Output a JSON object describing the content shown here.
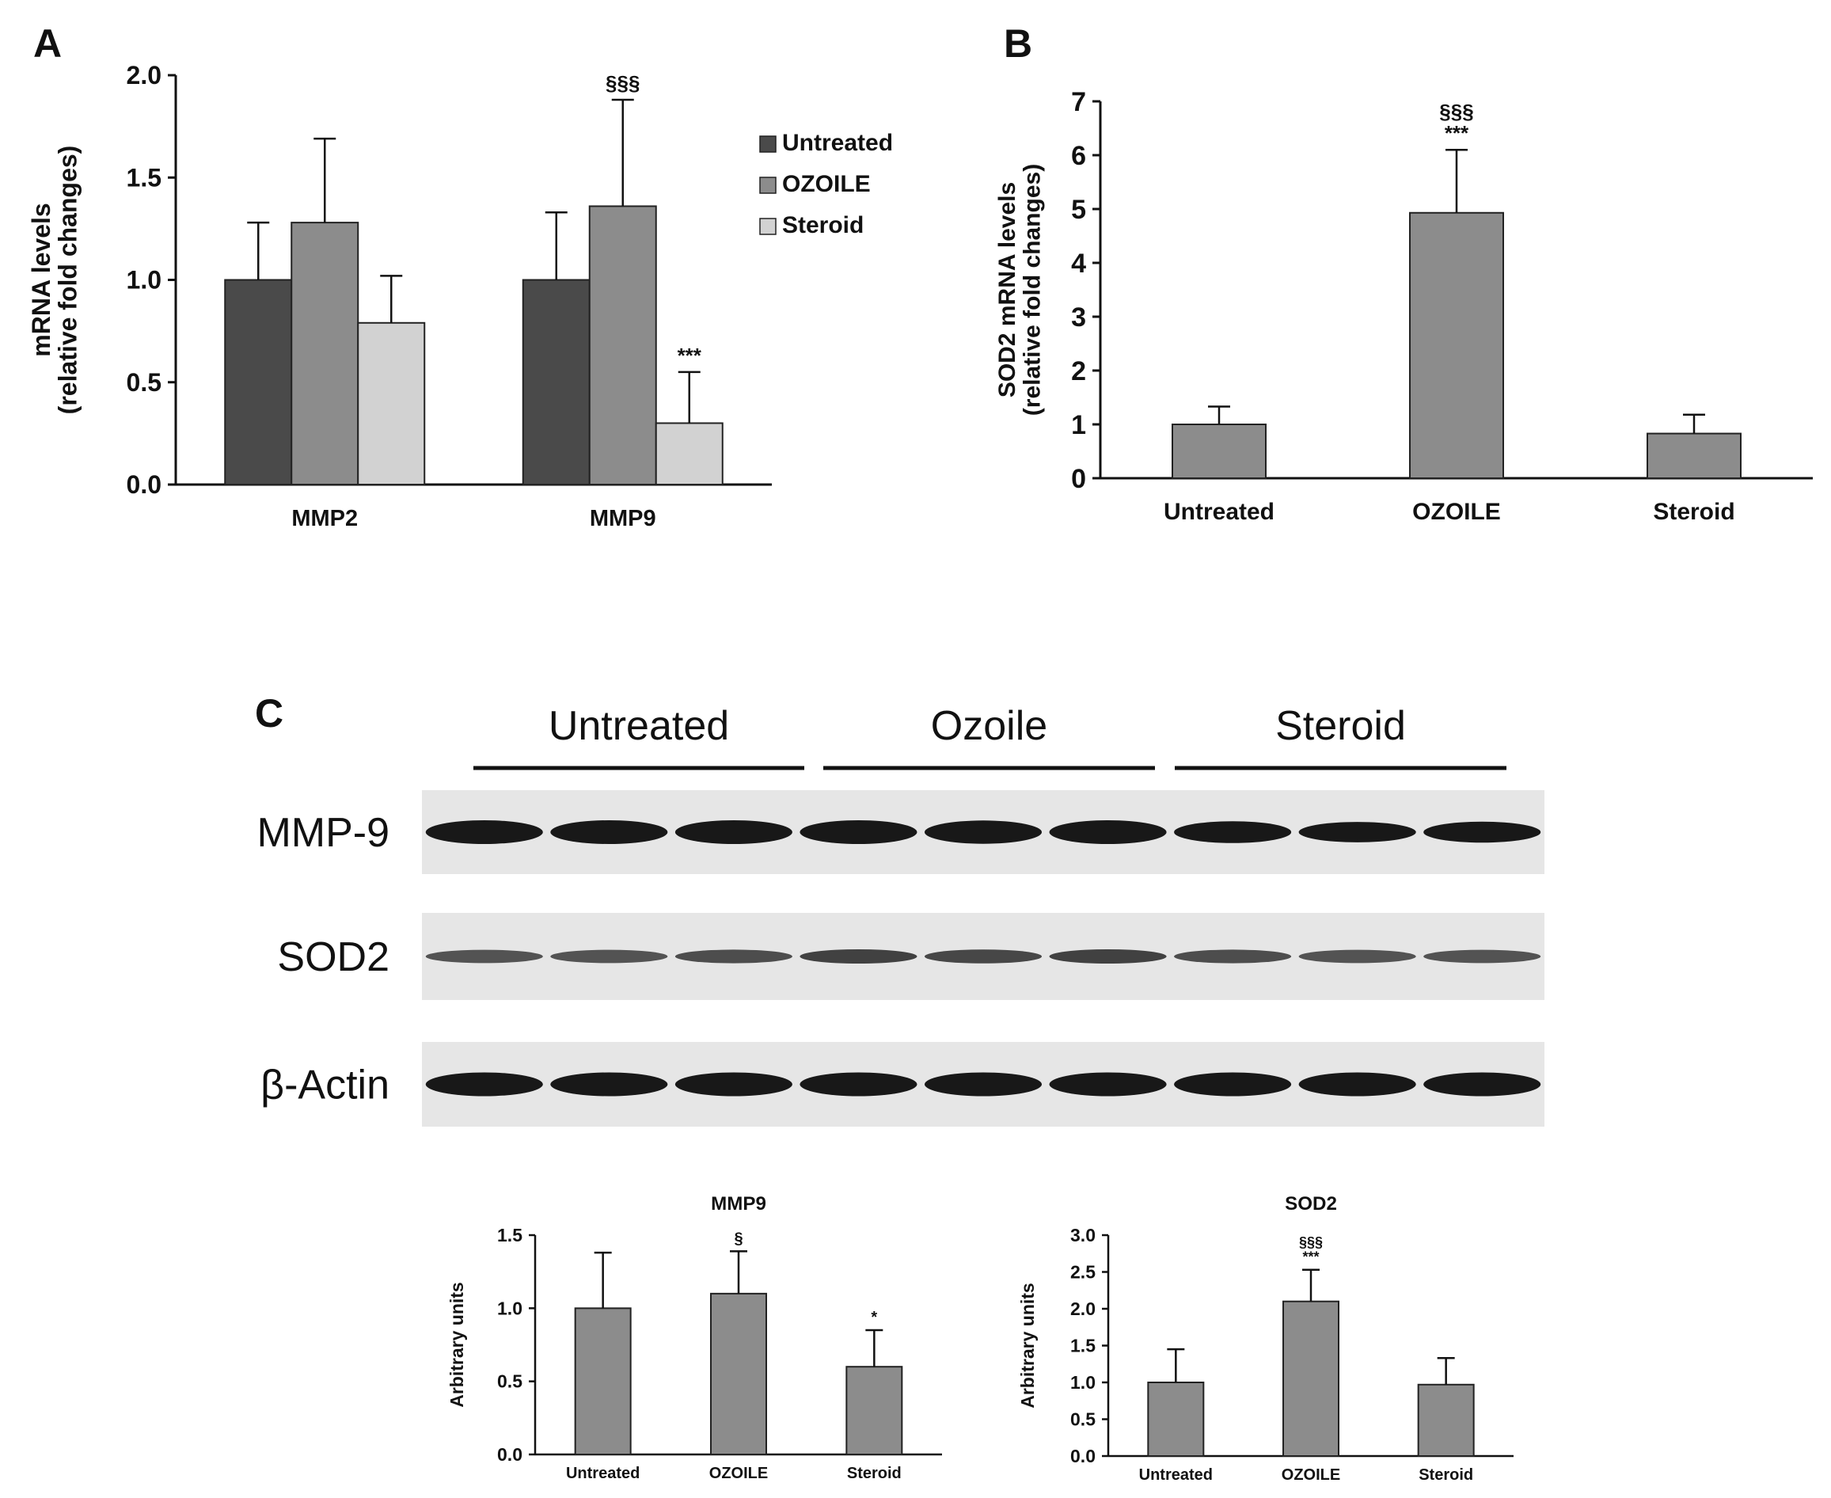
{
  "panel_labels": {
    "a": "A",
    "b": "B",
    "c": "C"
  },
  "colors": {
    "untreated": "#4a4a4a",
    "ozoile": "#8c8c8c",
    "steroid": "#d2d2d2",
    "bar_single": "#8c8c8c",
    "axis": "#111111",
    "blot_bg": "#e6e6e6",
    "band": "#0d0d0d"
  },
  "chart_data": [
    {
      "id": "A",
      "type": "bar",
      "categories": [
        "MMP2",
        "MMP9"
      ],
      "series": [
        {
          "name": "Untreated",
          "values": [
            1.0,
            1.0
          ],
          "errors": [
            0.28,
            0.33
          ]
        },
        {
          "name": "OZOILE",
          "values": [
            1.28,
            1.36
          ],
          "errors": [
            0.41,
            0.52
          ]
        },
        {
          "name": "Steroid",
          "values": [
            0.79,
            0.3
          ],
          "errors": [
            0.23,
            0.25
          ]
        }
      ],
      "annotations": [
        {
          "category": "MMP9",
          "series": "OZOILE",
          "text": "§§§"
        },
        {
          "category": "MMP9",
          "series": "Steroid",
          "text": "***"
        }
      ],
      "ylabel_line1": "mRNA levels",
      "ylabel_line2": "(relative fold changes)",
      "ylim": [
        0,
        2.0
      ],
      "yticks": [
        "0.0",
        "0.5",
        "1.0",
        "1.5",
        "2.0"
      ],
      "legend_position": "right"
    },
    {
      "id": "B",
      "type": "bar",
      "categories": [
        "Untreated",
        "OZOILE",
        "Steroid"
      ],
      "values": [
        1.0,
        4.93,
        0.83
      ],
      "errors": [
        0.33,
        1.17,
        0.35
      ],
      "annotations": [
        {
          "category": "OZOILE",
          "lines": [
            "§§§",
            "***"
          ]
        }
      ],
      "ylabel_line1": "SOD2 mRNA levels",
      "ylabel_line2": "(relative fold changes)",
      "ylim": [
        0,
        7
      ],
      "yticks": [
        "0",
        "1",
        "2",
        "3",
        "4",
        "5",
        "6",
        "7"
      ]
    },
    {
      "id": "C-MMP9",
      "type": "bar",
      "title": "MMP9",
      "categories": [
        "Untreated",
        "OZOILE",
        "Steroid"
      ],
      "values": [
        1.0,
        1.1,
        0.6
      ],
      "errors": [
        0.38,
        0.29,
        0.25
      ],
      "annotations": [
        {
          "category": "OZOILE",
          "lines": [
            "§"
          ]
        },
        {
          "category": "Steroid",
          "lines": [
            "*"
          ]
        }
      ],
      "ylabel_line1": "Arbitrary units",
      "ylim": [
        0,
        1.5
      ],
      "yticks": [
        "0.0",
        "0.5",
        "1.0",
        "1.5"
      ]
    },
    {
      "id": "C-SOD2",
      "type": "bar",
      "title": "SOD2",
      "categories": [
        "Untreated",
        "OZOILE",
        "Steroid"
      ],
      "values": [
        1.0,
        2.1,
        0.97
      ],
      "errors": [
        0.45,
        0.43,
        0.36
      ],
      "annotations": [
        {
          "category": "OZOILE",
          "lines": [
            "§§§",
            "***"
          ]
        }
      ],
      "ylabel_line1": "Arbitrary units",
      "ylim": [
        0,
        3.0
      ],
      "yticks": [
        "0.0",
        "0.5",
        "1.0",
        "1.5",
        "2.0",
        "2.5",
        "3.0"
      ]
    }
  ],
  "blot": {
    "groups": [
      "Untreated",
      "Ozoile",
      "Steroid"
    ],
    "rows": [
      {
        "label": "MMP-9",
        "intensity": [
          1.0,
          1.0,
          1.0,
          1.0,
          0.95,
          1.0,
          0.8,
          0.65,
          0.7
        ]
      },
      {
        "label": "SOD2",
        "intensity": [
          0.6,
          0.6,
          0.65,
          0.75,
          0.7,
          0.75,
          0.65,
          0.6,
          0.6
        ]
      },
      {
        "label": "β-Actin",
        "intensity": [
          1.0,
          1.0,
          1.0,
          1.0,
          1.0,
          1.0,
          1.0,
          1.0,
          1.0
        ]
      }
    ]
  }
}
